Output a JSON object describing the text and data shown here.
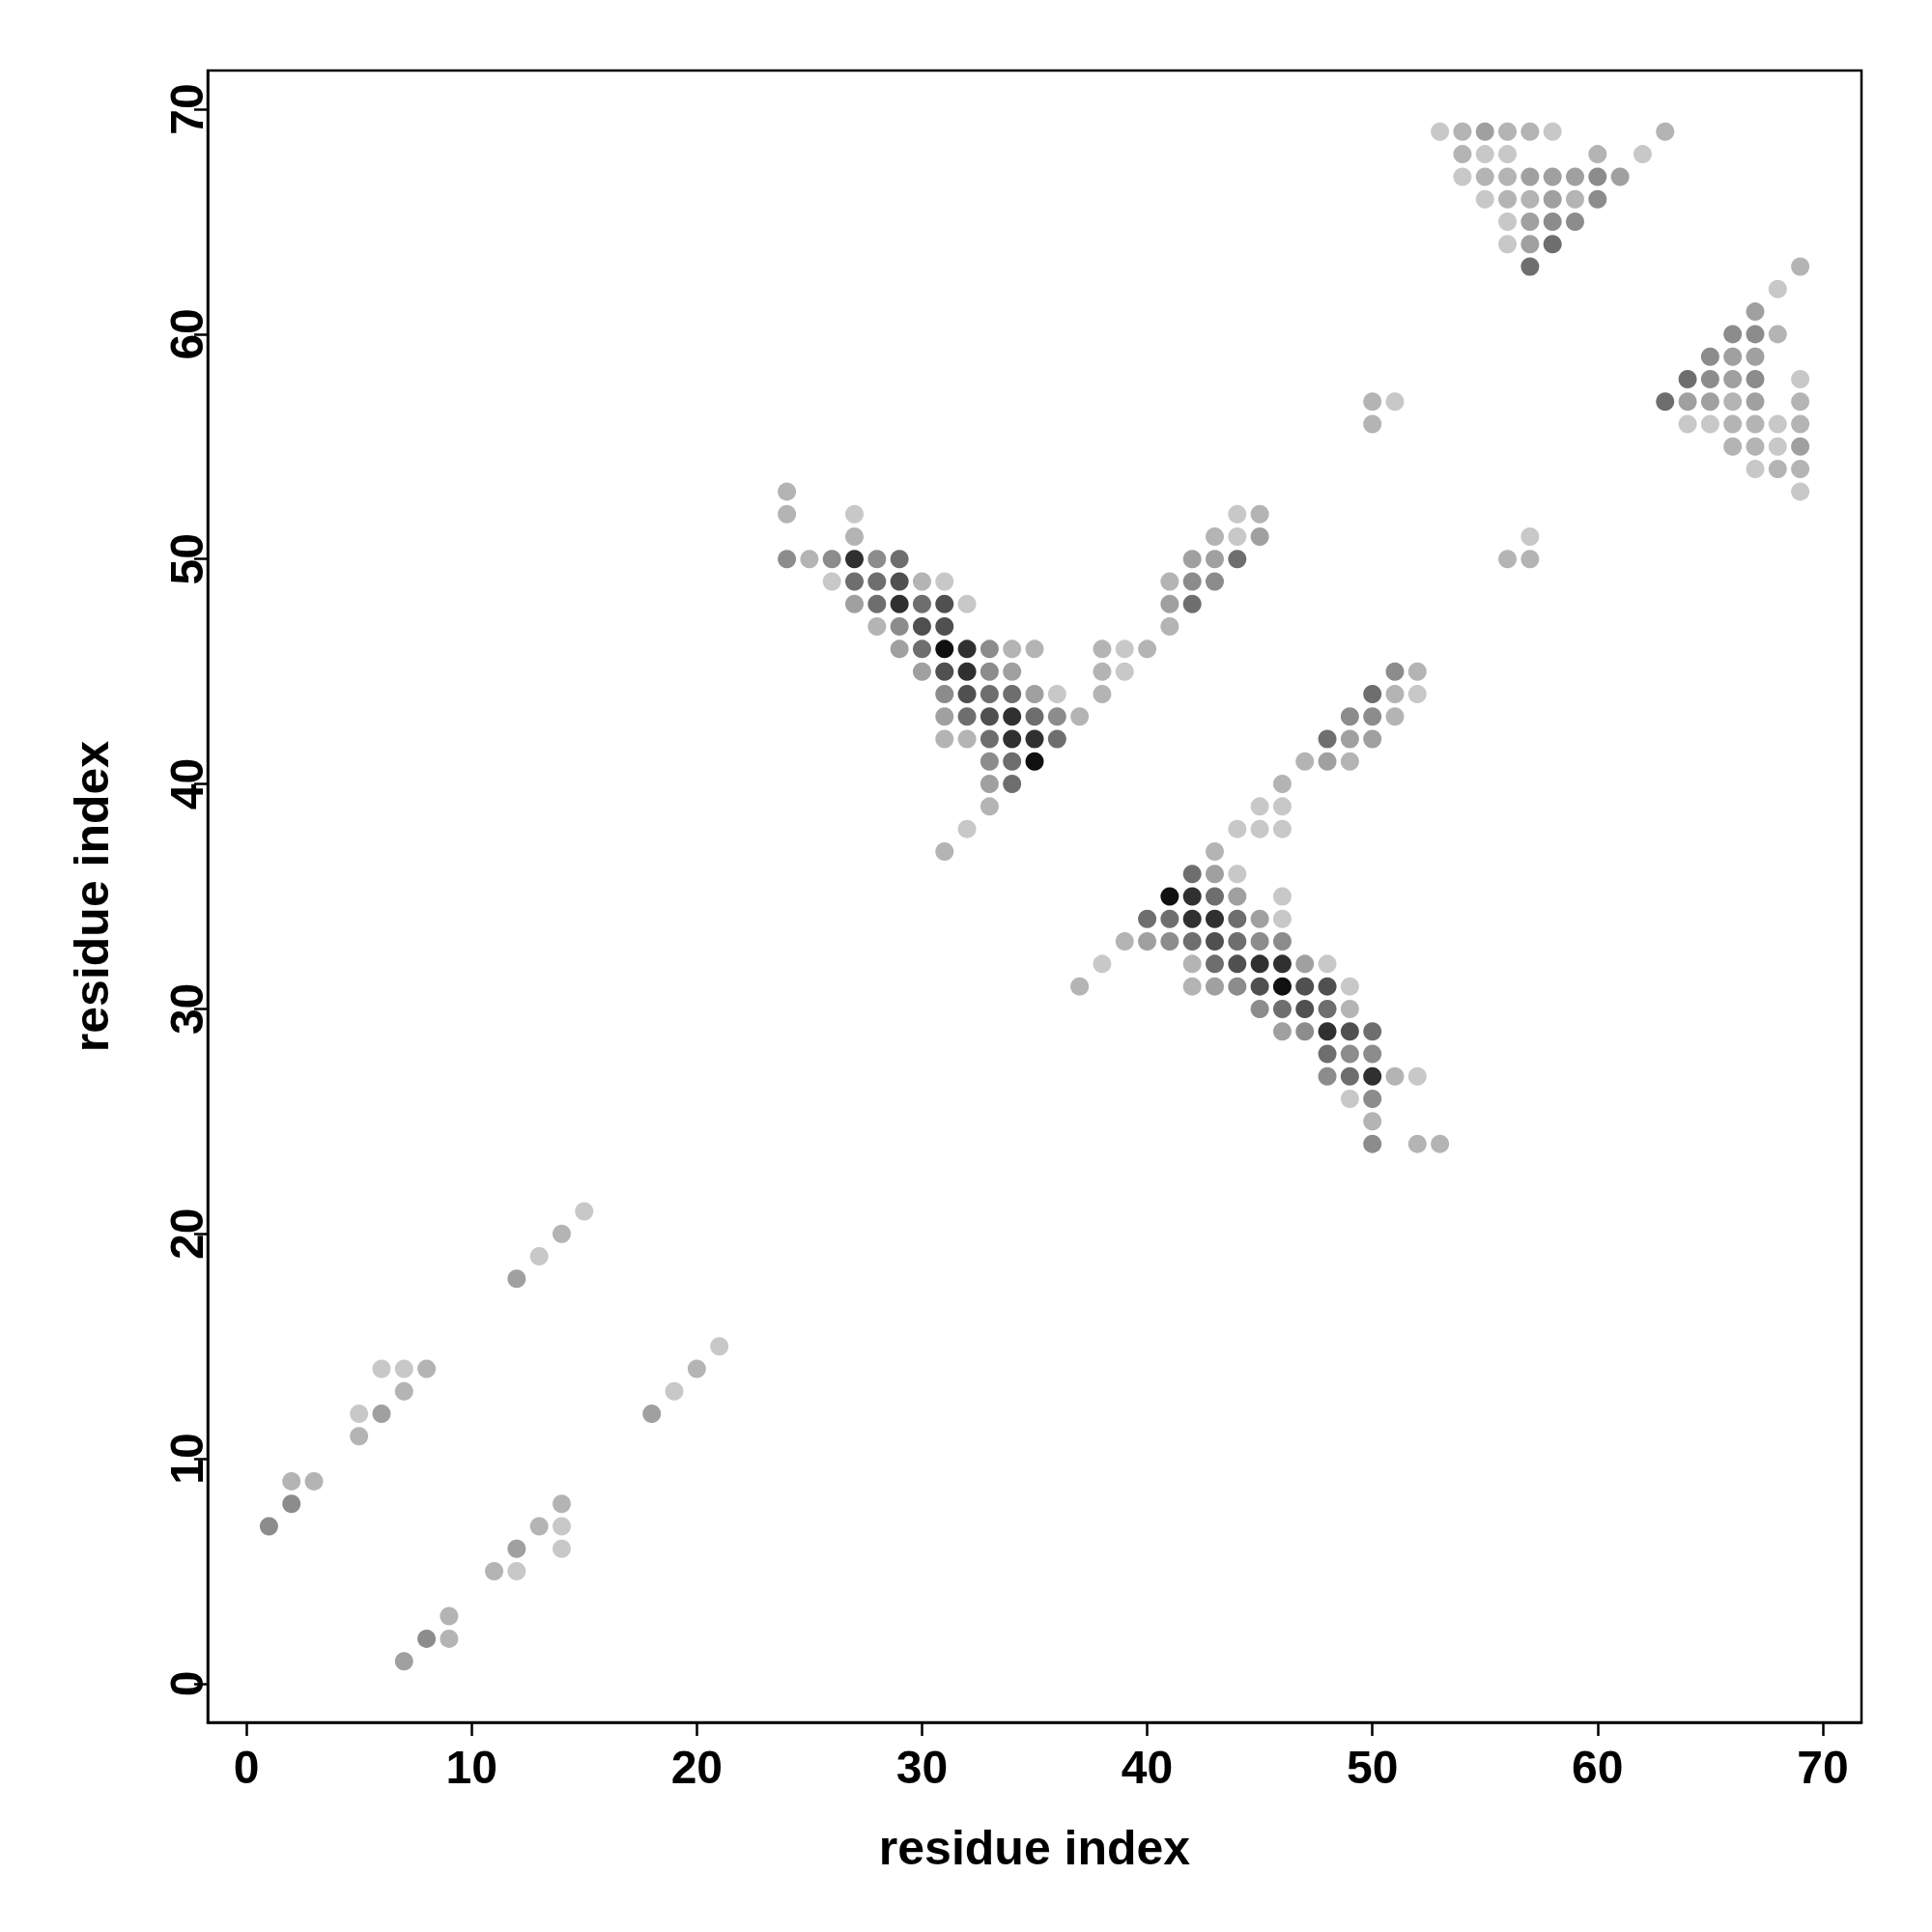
{
  "chart_data": {
    "type": "scatter",
    "xlabel": "residue index",
    "ylabel": "residue index",
    "xlim": [
      -1.72,
      71.72
    ],
    "ylim": [
      -1.72,
      71.72
    ],
    "xticks": [
      0,
      10,
      20,
      30,
      40,
      50,
      60,
      70
    ],
    "yticks": [
      0,
      10,
      20,
      30,
      40,
      50,
      60,
      70
    ],
    "grid": false,
    "marker": "circle",
    "series": [
      {
        "color": "#c8c8c8",
        "x": [
          5,
          6,
          7,
          13,
          15,
          12,
          14,
          14,
          19,
          21,
          27,
          26,
          31,
          32,
          36,
          32,
          39,
          39,
          52,
          45,
          46,
          44,
          45,
          46,
          44,
          46,
          46,
          38,
          48,
          49,
          52,
          49,
          44,
          44,
          53,
          58,
          55,
          56,
          62,
          54,
          55,
          56,
          56,
          68,
          69,
          51,
          64,
          65,
          68,
          68,
          67,
          69,
          57
        ],
        "values": [
          12,
          14,
          14,
          19,
          21,
          5,
          6,
          7,
          13,
          15,
          52,
          49,
          49,
          48,
          44,
          38,
          46,
          45,
          44,
          39,
          39,
          38,
          38,
          38,
          36,
          35,
          34,
          32,
          32,
          31,
          27,
          26,
          52,
          51,
          69,
          69,
          68,
          68,
          68,
          67,
          66,
          65,
          64,
          62,
          58,
          57,
          56,
          56,
          56,
          55,
          54,
          53,
          51
        ]
      },
      {
        "color": "#b4b4b4",
        "x": [
          2,
          3,
          5,
          7,
          8,
          14,
          9,
          11,
          13,
          14,
          20,
          9,
          24,
          24,
          27,
          25,
          30,
          28,
          34,
          35,
          37,
          31,
          32,
          33,
          31,
          38,
          40,
          38,
          52,
          51,
          38,
          51,
          49,
          47,
          46,
          43,
          39,
          42,
          37,
          42,
          49,
          51,
          50,
          52,
          53,
          41,
          41,
          43,
          45,
          54,
          56,
          57,
          63,
          54,
          60,
          55,
          56,
          56,
          57,
          59,
          69,
          68,
          66,
          69,
          50,
          50,
          66,
          67,
          69,
          66,
          67,
          68,
          69,
          56,
          57
        ],
        "values": [
          9,
          9,
          11,
          13,
          14,
          20,
          2,
          5,
          7,
          8,
          14,
          3,
          53,
          52,
          51,
          50,
          49,
          47,
          46,
          46,
          43,
          42,
          42,
          39,
          37,
          46,
          46,
          45,
          45,
          44,
          44,
          43,
          41,
          41,
          40,
          37,
          33,
          32,
          31,
          31,
          30,
          27,
          25,
          24,
          24,
          47,
          49,
          51,
          52,
          69,
          69,
          69,
          69,
          68,
          68,
          67,
          67,
          66,
          66,
          66,
          63,
          60,
          57,
          57,
          57,
          56,
          56,
          56,
          56,
          55,
          55,
          54,
          54,
          50,
          50
        ]
      },
      {
        "color": "#a0a0a0",
        "x": [
          6,
          12,
          18,
          7,
          12,
          27,
          29,
          30,
          35,
          31,
          33,
          34,
          49,
          50,
          48,
          43,
          44,
          45,
          40,
          47,
          43,
          46,
          41,
          42,
          43,
          45,
          55,
          57,
          58,
          59,
          61,
          58,
          57,
          57,
          67,
          66,
          67,
          66,
          64,
          65,
          67,
          69
        ],
        "values": [
          12,
          18,
          12,
          1,
          6,
          48,
          46,
          45,
          44,
          43,
          40,
          45,
          42,
          42,
          41,
          36,
          35,
          34,
          33,
          32,
          31,
          29,
          48,
          50,
          50,
          51,
          69,
          67,
          67,
          67,
          67,
          66,
          65,
          64,
          61,
          59,
          59,
          58,
          57,
          57,
          57,
          55
        ]
      },
      {
        "color": "#8c8c8c",
        "x": [
          1,
          2,
          8,
          24,
          26,
          28,
          29,
          33,
          33,
          31,
          36,
          33,
          51,
          49,
          50,
          41,
          45,
          46,
          44,
          45,
          47,
          49,
          50,
          48,
          50,
          50,
          42,
          43,
          60,
          60,
          58,
          59,
          66,
          67,
          65,
          65,
          67
        ],
        "values": [
          7,
          8,
          2,
          50,
          50,
          50,
          47,
          46,
          45,
          44,
          43,
          41,
          45,
          43,
          43,
          33,
          33,
          33,
          31,
          30,
          29,
          28,
          28,
          27,
          26,
          24,
          49,
          49,
          67,
          66,
          65,
          65,
          60,
          60,
          59,
          58,
          58
        ]
      },
      {
        "color": "#6e6e6e",
        "x": [
          29,
          27,
          28,
          28,
          30,
          30,
          33,
          34,
          32,
          35,
          33,
          36,
          34,
          34,
          50,
          48,
          42,
          43,
          40,
          41,
          44,
          42,
          44,
          43,
          46,
          48,
          50,
          48,
          49,
          42,
          44,
          58,
          57,
          64,
          63
        ],
        "values": [
          50,
          49,
          49,
          48,
          48,
          46,
          44,
          44,
          43,
          43,
          42,
          42,
          41,
          40,
          44,
          42,
          36,
          35,
          34,
          34,
          34,
          33,
          33,
          32,
          30,
          30,
          29,
          28,
          27,
          48,
          50,
          64,
          63,
          58,
          57
        ]
      },
      {
        "color": "#505050",
        "x": [
          29,
          31,
          30,
          31,
          31,
          32,
          33,
          43,
          44,
          45,
          47,
          48,
          47,
          49
        ],
        "values": [
          49,
          48,
          47,
          47,
          45,
          44,
          43,
          33,
          32,
          31,
          31,
          31,
          30,
          29
        ]
      },
      {
        "color": "#303030",
        "x": [
          27,
          29,
          32,
          32,
          34,
          34,
          35,
          42,
          42,
          43,
          45,
          46,
          48,
          50
        ],
        "values": [
          50,
          48,
          46,
          45,
          43,
          42,
          42,
          35,
          34,
          34,
          32,
          32,
          29,
          27
        ]
      },
      {
        "color": "#101010",
        "x": [
          31,
          35,
          41,
          46
        ],
        "values": [
          46,
          41,
          35,
          31
        ]
      }
    ]
  }
}
